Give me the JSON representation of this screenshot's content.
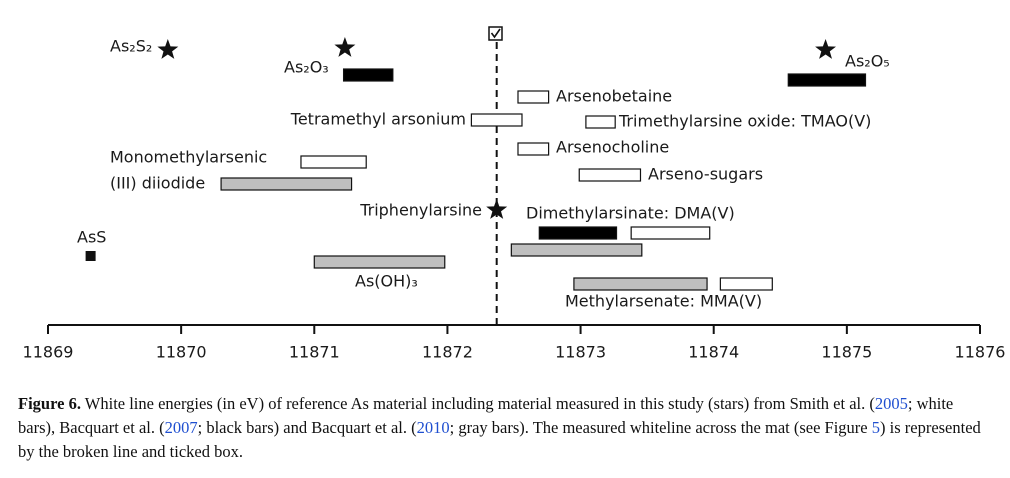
{
  "chart_data": {
    "type": "range",
    "xlim": [
      11869,
      11876
    ],
    "xticks": [
      11869,
      11870,
      11871,
      11872,
      11873,
      11874,
      11875,
      11876
    ],
    "reference_line": 11872.37,
    "compounds": [
      {
        "labels": [
          "As₂S₂"
        ],
        "markers": [
          {
            "x": 11869.9,
            "shape": "star"
          }
        ],
        "bars": []
      },
      {
        "labels": [
          "As₂O₃"
        ],
        "markers": [
          {
            "x": 11871.23,
            "shape": "star"
          }
        ],
        "bars": [
          {
            "range": [
              11871.22,
              11871.59
            ],
            "color": "#000000"
          }
        ]
      },
      {
        "labels": [
          "As₂O₅"
        ],
        "markers": [
          {
            "x": 11874.84,
            "shape": "star"
          }
        ],
        "bars": [
          {
            "range": [
              11874.56,
              11875.14
            ],
            "color": "#000000"
          }
        ]
      },
      {
        "labels": [
          "Arsenobetaine"
        ],
        "markers": [],
        "bars": [
          {
            "range": [
              11872.53,
              11872.76
            ],
            "color": "#ffffff"
          }
        ]
      },
      {
        "labels": [
          "Tetramethyl arsonium"
        ],
        "markers": [],
        "bars": [
          {
            "range": [
              11872.18,
              11872.56
            ],
            "color": "#ffffff"
          }
        ]
      },
      {
        "labels": [
          "Trimethylarsine oxide: TMAO(V)"
        ],
        "markers": [],
        "bars": [
          {
            "range": [
              11873.04,
              11873.26
            ],
            "color": "#ffffff"
          }
        ]
      },
      {
        "labels": [
          "Arsenocholine"
        ],
        "markers": [],
        "bars": [
          {
            "range": [
              11872.53,
              11872.76
            ],
            "color": "#ffffff"
          }
        ]
      },
      {
        "labels": [
          "Monomethylarsenic",
          "(III) diiodide"
        ],
        "markers": [],
        "bars": [
          {
            "range": [
              11870.9,
              11871.39
            ],
            "color": "#ffffff"
          },
          {
            "range": [
              11870.3,
              11871.28
            ],
            "color": "#bfbfbf"
          }
        ]
      },
      {
        "labels": [
          "Arseno-sugars"
        ],
        "markers": [],
        "bars": [
          {
            "range": [
              11872.99,
              11873.45
            ],
            "color": "#ffffff"
          }
        ]
      },
      {
        "labels": [
          "Triphenylarsine"
        ],
        "markers": [
          {
            "x": 11872.37,
            "shape": "star"
          }
        ],
        "bars": []
      },
      {
        "labels": [
          "Dimethylarsinate: DMA(V)"
        ],
        "markers": [],
        "bars": [
          {
            "range": [
              11872.69,
              11873.27
            ],
            "color": "#000000"
          },
          {
            "range": [
              11873.38,
              11873.97
            ],
            "color": "#ffffff"
          },
          {
            "range": [
              11872.48,
              11873.46
            ],
            "color": "#bfbfbf"
          }
        ]
      },
      {
        "labels": [
          "AsS"
        ],
        "markers": [
          {
            "x": 11869.32,
            "shape": "square"
          }
        ],
        "bars": []
      },
      {
        "labels": [
          "As(OH)₃"
        ],
        "markers": [],
        "bars": [
          {
            "range": [
              11871.0,
              11871.98
            ],
            "color": "#bfbfbf"
          }
        ]
      },
      {
        "labels": [
          "Methylarsenate: MMA(V)"
        ],
        "markers": [],
        "bars": [
          {
            "range": [
              11872.95,
              11873.95
            ],
            "color": "#bfbfbf"
          },
          {
            "range": [
              11874.05,
              11874.44
            ],
            "color": "#ffffff"
          }
        ]
      }
    ]
  },
  "caption": {
    "runs": [
      {
        "text": "Figure 6.",
        "style": "bold"
      },
      {
        "text": " White line energies (in eV) of reference As material including material measured in this study (stars) from Smith et al. (",
        "style": "plain"
      },
      {
        "text": "2005",
        "style": "link"
      },
      {
        "text": "; white bars), Bacquart et al. (",
        "style": "plain"
      },
      {
        "text": "2007",
        "style": "link"
      },
      {
        "text": "; black bars) and Bacquart et al. (",
        "style": "plain"
      },
      {
        "text": "2010",
        "style": "link"
      },
      {
        "text": "; gray bars). The measured whiteline across the mat (see Figure ",
        "style": "plain"
      },
      {
        "text": "5",
        "style": "link"
      },
      {
        "text": ") is represented by the broken line and ticked box.",
        "style": "plain"
      }
    ]
  }
}
